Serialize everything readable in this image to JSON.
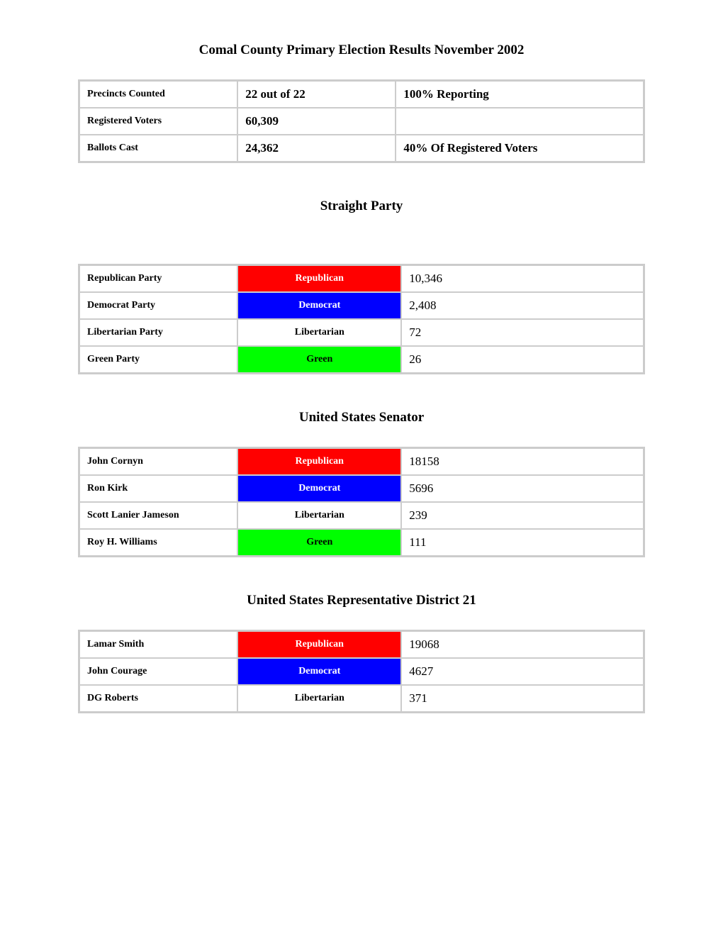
{
  "page_title": "Comal County Primary Election Results November 2002",
  "summary": {
    "rows": [
      {
        "label": "Precincts Counted",
        "value": "22 out of 22",
        "note": "100% Reporting"
      },
      {
        "label": "Registered Voters",
        "value": "60,309",
        "note": ""
      },
      {
        "label": "Ballots Cast",
        "value": "24,362",
        "note": "40%  Of Registered Voters"
      }
    ]
  },
  "straight_party": {
    "title": "Straight Party",
    "rows": [
      {
        "candidate": "Republican Party",
        "party": "Republican",
        "party_class": "republican",
        "votes": "10,346"
      },
      {
        "candidate": "Democrat Party",
        "party": "Democrat",
        "party_class": "democrat",
        "votes": "2,408"
      },
      {
        "candidate": "Libertarian Party",
        "party": "Libertarian",
        "party_class": "libertarian",
        "votes": "72"
      },
      {
        "candidate": "Green Party",
        "party": "Green",
        "party_class": "green",
        "votes": "26"
      }
    ]
  },
  "senator": {
    "title": "United States Senator",
    "rows": [
      {
        "candidate": "John Cornyn",
        "party": "Republican",
        "party_class": "republican",
        "votes": "18158"
      },
      {
        "candidate": "Ron Kirk",
        "party": "Democrat",
        "party_class": "democrat",
        "votes": "5696"
      },
      {
        "candidate": "Scott Lanier Jameson",
        "party": "Libertarian",
        "party_class": "libertarian",
        "votes": "239"
      },
      {
        "candidate": "Roy H. Williams",
        "party": "Green",
        "party_class": "green",
        "votes": "111"
      }
    ]
  },
  "representative": {
    "title": "United States Representative District 21",
    "rows": [
      {
        "candidate": "Lamar Smith",
        "party": "Republican",
        "party_class": "republican",
        "votes": "19068"
      },
      {
        "candidate": "John Courage",
        "party": "Democrat",
        "party_class": "democrat",
        "votes": "4627"
      },
      {
        "candidate": "DG Roberts",
        "party": "Libertarian",
        "party_class": "libertarian",
        "votes": "371"
      }
    ]
  },
  "colors": {
    "republican_bg": "#ff0000",
    "democrat_bg": "#0000ff",
    "libertarian_bg": "#ffffff",
    "green_bg": "#00ff00",
    "border": "#cccccc",
    "background": "#ffffff"
  }
}
